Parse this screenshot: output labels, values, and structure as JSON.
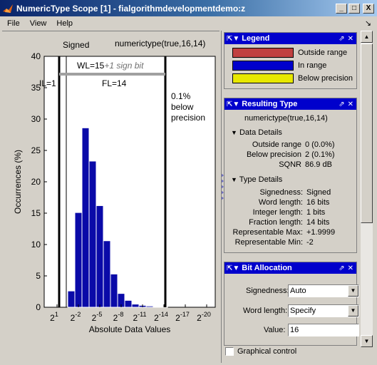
{
  "window": {
    "title": "NumericType Scope [1] - fialgorithmdevelopmentdemo:z",
    "minimize": "_",
    "maximize": "□",
    "close": "X"
  },
  "menu": [
    "File",
    "View",
    "Help"
  ],
  "menu_dock_glyph": "↘",
  "plot": {
    "signed_label": "Signed",
    "type_label": "numerictype(true,16,14)",
    "wl_label": "WL=15",
    "wl_suffix": "+1 sign bit",
    "il_label": "IL=1",
    "fl_label": "FL=14",
    "below_precision_label": [
      "0.1%",
      "below",
      "precision"
    ],
    "colors": {
      "bars": "#0a0aa8",
      "bar_edge": "#ffffff",
      "axis": "#000000",
      "wl_bar": "#a0a0a0"
    }
  },
  "chart_data": {
    "type": "bar",
    "xlabel": "Absolute Data Values",
    "ylabel": "Occurrences (%)",
    "ylim": [
      0,
      40
    ],
    "yticks": [
      "0",
      "5",
      "10",
      "15",
      "20",
      "25",
      "30",
      "35",
      "40"
    ],
    "xticks": [
      {
        "base": "2",
        "exp": "1"
      },
      {
        "base": "2",
        "exp": "-2"
      },
      {
        "base": "2",
        "exp": "-5"
      },
      {
        "base": "2",
        "exp": "-8"
      },
      {
        "base": "2",
        "exp": "-11"
      },
      {
        "base": "2",
        "exp": "-14"
      },
      {
        "base": "2",
        "exp": "-17"
      },
      {
        "base": "2",
        "exp": "-20"
      }
    ],
    "bin_exponents": [
      0,
      -1,
      -2,
      -3,
      -4,
      -5,
      -6,
      -7,
      -8,
      -9,
      -10,
      -11,
      -12,
      -13
    ],
    "values": [
      2.6,
      15.1,
      28.6,
      23.3,
      16.2,
      10.6,
      5.3,
      2.2,
      1.1,
      0.5,
      0.3,
      0.2,
      0.1,
      0.1
    ],
    "grid": false
  },
  "legend_panel": {
    "title": "Legend",
    "items": [
      {
        "label": "Outside range",
        "color": "#c04040"
      },
      {
        "label": "In range",
        "color": "#0000cc"
      },
      {
        "label": "Below precision",
        "color": "#e8e800"
      }
    ]
  },
  "resulting_type_panel": {
    "title": "Resulting Type",
    "type": "numerictype(true,16,14)",
    "data_details_title": "Data Details",
    "data_details": [
      {
        "key": "Outside range",
        "value": "0 (0.0%)"
      },
      {
        "key": "Below precision",
        "value": "2 (0.1%)"
      },
      {
        "key": "SQNR",
        "value": "86.9 dB"
      }
    ],
    "type_details_title": "Type Details",
    "type_details": [
      {
        "key": "Signedness:",
        "value": "Signed"
      },
      {
        "key": "Word length:",
        "value": "16 bits"
      },
      {
        "key": "Integer length:",
        "value": "1 bits"
      },
      {
        "key": "Fraction length:",
        "value": "14 bits"
      },
      {
        "key": "Representable Max:",
        "value": "+1.9999"
      },
      {
        "key": "Representable Min:",
        "value": "-2"
      }
    ]
  },
  "bit_allocation_panel": {
    "title": "Bit Allocation",
    "signedness_label": "Signedness:",
    "signedness_value": "Auto",
    "word_length_label": "Word length:",
    "word_length_value": "Specify",
    "value_label": "Value:",
    "value_value": "16"
  },
  "graphical_control_label": "Graphical control",
  "panel_glyphs": {
    "pin": "⇱▼",
    "undock": "⇗",
    "close": "✕",
    "collapse": "▼"
  }
}
